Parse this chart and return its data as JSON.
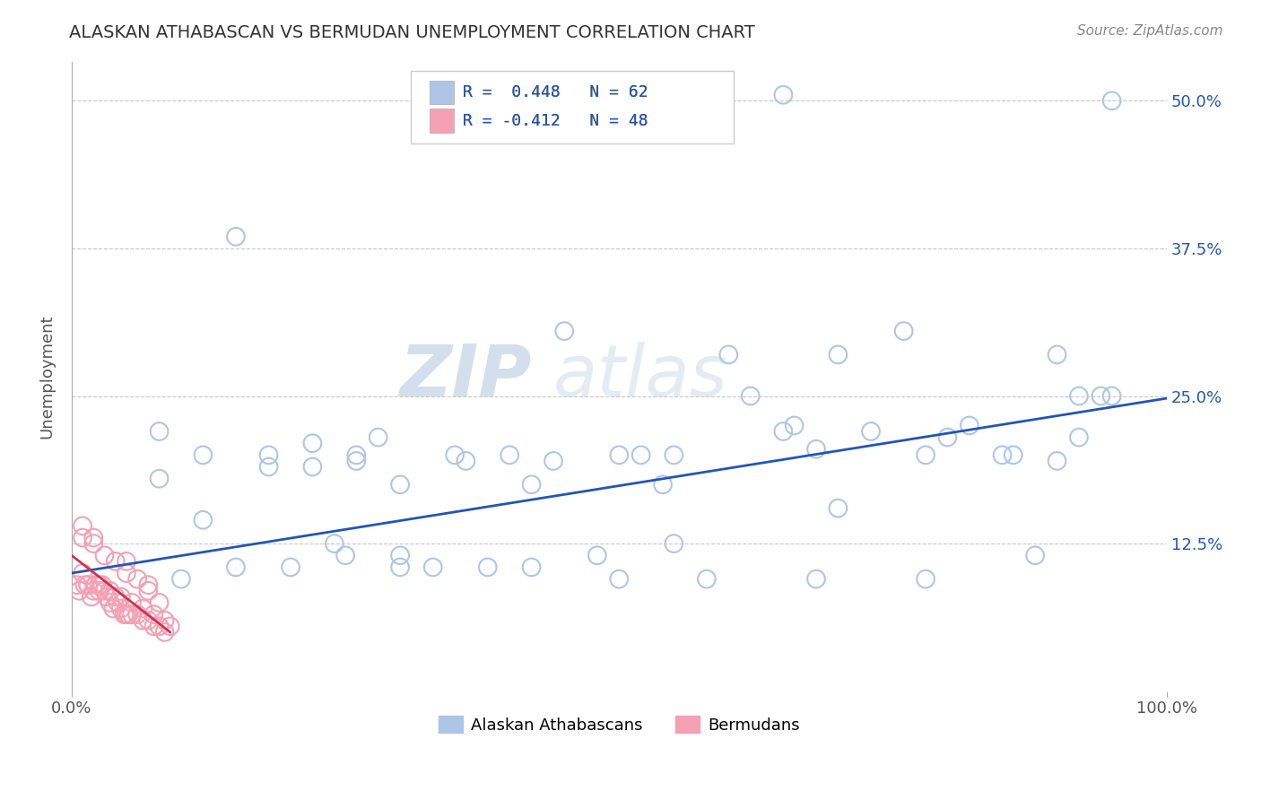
{
  "title": "ALASKAN ATHABASCAN VS BERMUDAN UNEMPLOYMENT CORRELATION CHART",
  "source": "Source: ZipAtlas.com",
  "ylabel": "Unemployment",
  "xlim": [
    0.0,
    1.0
  ],
  "ylim": [
    0.0,
    0.5333
  ],
  "xtick_labels": [
    "0.0%",
    "100.0%"
  ],
  "ytick_labels": [
    "12.5%",
    "25.0%",
    "37.5%",
    "50.0%"
  ],
  "ytick_vals": [
    0.125,
    0.25,
    0.375,
    0.5
  ],
  "xtick_vals": [
    0.0,
    1.0
  ],
  "background_color": "#ffffff",
  "grid_color": "#c8c8c8",
  "legend_line1": "R =  0.448   N = 62",
  "legend_line2": "R = -0.412   N = 48",
  "blue_color": "#adc6e8",
  "pink_color": "#f5a0b5",
  "line_color": "#2255bb",
  "pink_line_color": "#cc3355",
  "watermark_zip": "ZIP",
  "watermark_atlas": "atlas",
  "blue_scatter_x": [
    0.65,
    0.95,
    0.15,
    0.08,
    0.22,
    0.26,
    0.22,
    0.12,
    0.18,
    0.3,
    0.55,
    0.5,
    0.6,
    0.7,
    0.78,
    0.85,
    0.9,
    0.92,
    0.45,
    0.4,
    0.35,
    0.65,
    0.62,
    0.73,
    0.55,
    0.48,
    0.38,
    0.2,
    0.25,
    0.3,
    0.42,
    0.5,
    0.58,
    0.68,
    0.78,
    0.88,
    0.95,
    0.1,
    0.15,
    0.28,
    0.33,
    0.7,
    0.82,
    0.9,
    0.52,
    0.44,
    0.36,
    0.26,
    0.86,
    0.94,
    0.76,
    0.66,
    0.08,
    0.18,
    0.3,
    0.42,
    0.54,
    0.68,
    0.8,
    0.92,
    0.12,
    0.24
  ],
  "blue_scatter_y": [
    0.505,
    0.5,
    0.385,
    0.22,
    0.21,
    0.2,
    0.19,
    0.2,
    0.19,
    0.115,
    0.125,
    0.2,
    0.285,
    0.285,
    0.2,
    0.2,
    0.195,
    0.25,
    0.305,
    0.2,
    0.2,
    0.22,
    0.25,
    0.22,
    0.2,
    0.115,
    0.105,
    0.105,
    0.115,
    0.105,
    0.105,
    0.095,
    0.095,
    0.095,
    0.095,
    0.115,
    0.25,
    0.095,
    0.105,
    0.215,
    0.105,
    0.155,
    0.225,
    0.285,
    0.2,
    0.195,
    0.195,
    0.195,
    0.2,
    0.25,
    0.305,
    0.225,
    0.18,
    0.2,
    0.175,
    0.175,
    0.175,
    0.205,
    0.215,
    0.215,
    0.145,
    0.125
  ],
  "pink_scatter_x": [
    0.005,
    0.007,
    0.01,
    0.012,
    0.015,
    0.018,
    0.02,
    0.022,
    0.025,
    0.028,
    0.03,
    0.032,
    0.035,
    0.038,
    0.04,
    0.042,
    0.045,
    0.048,
    0.05,
    0.052,
    0.055,
    0.06,
    0.065,
    0.07,
    0.075,
    0.08,
    0.085,
    0.09,
    0.01,
    0.02,
    0.03,
    0.04,
    0.05,
    0.06,
    0.07,
    0.08,
    0.015,
    0.025,
    0.035,
    0.045,
    0.055,
    0.065,
    0.075,
    0.085,
    0.01,
    0.02,
    0.05,
    0.07
  ],
  "pink_scatter_y": [
    0.09,
    0.085,
    0.1,
    0.09,
    0.09,
    0.08,
    0.085,
    0.09,
    0.085,
    0.09,
    0.085,
    0.08,
    0.075,
    0.07,
    0.08,
    0.075,
    0.07,
    0.065,
    0.065,
    0.065,
    0.065,
    0.065,
    0.06,
    0.06,
    0.055,
    0.055,
    0.05,
    0.055,
    0.13,
    0.125,
    0.115,
    0.11,
    0.1,
    0.095,
    0.085,
    0.075,
    0.09,
    0.09,
    0.085,
    0.08,
    0.075,
    0.07,
    0.065,
    0.06,
    0.14,
    0.13,
    0.11,
    0.09
  ],
  "trendline_x": [
    0.0,
    1.0
  ],
  "trendline_y": [
    0.1,
    0.248
  ],
  "pink_trendline_x": [
    0.0,
    0.09
  ],
  "pink_trendline_y": [
    0.115,
    0.05
  ]
}
